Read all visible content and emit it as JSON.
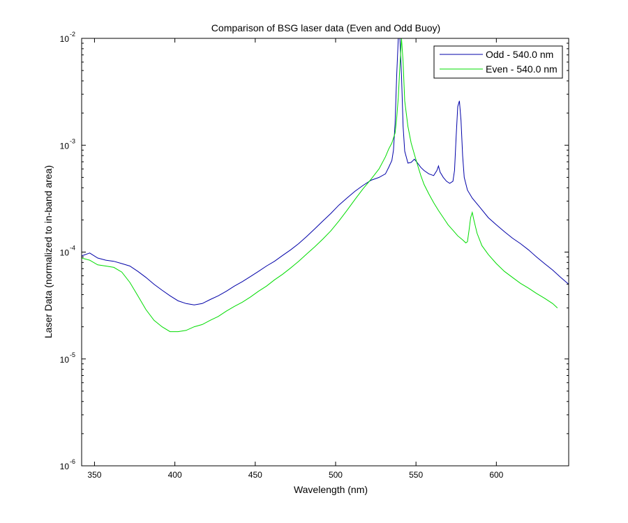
{
  "chart_data": {
    "type": "line",
    "title": "Comparison of BSG laser data (Even and Odd Buoy)",
    "xlabel": "Wavelength (nm)",
    "ylabel": "Laser Data (normalized to in-band area)",
    "xlim": [
      342,
      645
    ],
    "ylim": [
      1e-06,
      0.01
    ],
    "yscale": "log",
    "x_ticks": [
      350,
      400,
      450,
      500,
      550,
      600
    ],
    "y_ticks": [
      {
        "base": "10",
        "exp": "-6",
        "value": 1e-06
      },
      {
        "base": "10",
        "exp": "-5",
        "value": 1e-05
      },
      {
        "base": "10",
        "exp": "-4",
        "value": 0.0001
      },
      {
        "base": "10",
        "exp": "-3",
        "value": 0.001
      },
      {
        "base": "10",
        "exp": "-2",
        "value": 0.01
      }
    ],
    "grid": false,
    "legend_position": "top-right",
    "series": [
      {
        "name": "Odd - 540.0 nm",
        "color": "#0000a8",
        "points": [
          [
            342,
            9.2e-05
          ],
          [
            347,
            9.8e-05
          ],
          [
            352,
            8.8e-05
          ],
          [
            357,
            8.4e-05
          ],
          [
            362,
            8.2e-05
          ],
          [
            367,
            7.8e-05
          ],
          [
            372,
            7.4e-05
          ],
          [
            377,
            6.6e-05
          ],
          [
            382,
            5.8e-05
          ],
          [
            387,
            5e-05
          ],
          [
            392,
            4.4e-05
          ],
          [
            397,
            3.9e-05
          ],
          [
            402,
            3.5e-05
          ],
          [
            407,
            3.3e-05
          ],
          [
            412,
            3.2e-05
          ],
          [
            417,
            3.3e-05
          ],
          [
            422,
            3.6e-05
          ],
          [
            427,
            3.9e-05
          ],
          [
            432,
            4.3e-05
          ],
          [
            437,
            4.8e-05
          ],
          [
            442,
            5.3e-05
          ],
          [
            447,
            5.9e-05
          ],
          [
            452,
            6.6e-05
          ],
          [
            457,
            7.4e-05
          ],
          [
            462,
            8.2e-05
          ],
          [
            467,
            9.3e-05
          ],
          [
            472,
            0.000105
          ],
          [
            477,
            0.00012
          ],
          [
            482,
            0.00014
          ],
          [
            487,
            0.000165
          ],
          [
            492,
            0.000195
          ],
          [
            497,
            0.00023
          ],
          [
            502,
            0.000275
          ],
          [
            507,
            0.00032
          ],
          [
            512,
            0.00037
          ],
          [
            517,
            0.00042
          ],
          [
            522,
            0.00047
          ],
          [
            527,
            0.0005
          ],
          [
            531,
            0.00054
          ],
          [
            533,
            0.00062
          ],
          [
            535,
            0.00072
          ],
          [
            536,
            0.0009
          ],
          [
            537,
            0.0016
          ],
          [
            538,
            0.0045
          ],
          [
            539,
            0.01
          ],
          [
            540,
            0.01
          ],
          [
            541,
            0.0045
          ],
          [
            542,
            0.0015
          ],
          [
            543,
            0.00088
          ],
          [
            545,
            0.00068
          ],
          [
            547,
            0.00069
          ],
          [
            549,
            0.00074
          ],
          [
            551,
            0.00068
          ],
          [
            553,
            0.00062
          ],
          [
            555,
            0.00058
          ],
          [
            558,
            0.00054
          ],
          [
            561,
            0.00052
          ],
          [
            563,
            0.00058
          ],
          [
            564,
            0.00064
          ],
          [
            565,
            0.00056
          ],
          [
            567,
            0.0005
          ],
          [
            569,
            0.00046
          ],
          [
            571,
            0.00044
          ],
          [
            573,
            0.00046
          ],
          [
            574,
            0.00058
          ],
          [
            575,
            0.0012
          ],
          [
            576,
            0.0023
          ],
          [
            577,
            0.0026
          ],
          [
            578,
            0.0017
          ],
          [
            579,
            0.0008
          ],
          [
            580,
            0.0005
          ],
          [
            582,
            0.00038
          ],
          [
            585,
            0.00032
          ],
          [
            590,
            0.00026
          ],
          [
            595,
            0.00021
          ],
          [
            600,
            0.00018
          ],
          [
            605,
            0.000155
          ],
          [
            610,
            0.000135
          ],
          [
            615,
            0.00012
          ],
          [
            620,
            0.000105
          ],
          [
            625,
            9e-05
          ],
          [
            630,
            7.8e-05
          ],
          [
            635,
            6.8e-05
          ],
          [
            640,
            5.8e-05
          ],
          [
            645,
            5e-05
          ]
        ]
      },
      {
        "name": "Even - 540.0 nm",
        "color": "#00dc00",
        "points": [
          [
            342,
            8.8e-05
          ],
          [
            347,
            8.4e-05
          ],
          [
            352,
            7.6e-05
          ],
          [
            357,
            7.4e-05
          ],
          [
            362,
            7.2e-05
          ],
          [
            367,
            6.5e-05
          ],
          [
            372,
            5.2e-05
          ],
          [
            377,
            3.9e-05
          ],
          [
            382,
            2.9e-05
          ],
          [
            387,
            2.3e-05
          ],
          [
            392,
            2e-05
          ],
          [
            397,
            1.8e-05
          ],
          [
            402,
            1.8e-05
          ],
          [
            407,
            1.85e-05
          ],
          [
            412,
            2e-05
          ],
          [
            417,
            2.1e-05
          ],
          [
            422,
            2.3e-05
          ],
          [
            427,
            2.5e-05
          ],
          [
            432,
            2.8e-05
          ],
          [
            437,
            3.1e-05
          ],
          [
            442,
            3.4e-05
          ],
          [
            447,
            3.8e-05
          ],
          [
            452,
            4.3e-05
          ],
          [
            457,
            4.8e-05
          ],
          [
            462,
            5.5e-05
          ],
          [
            467,
            6.2e-05
          ],
          [
            472,
            7.1e-05
          ],
          [
            477,
            8.2e-05
          ],
          [
            482,
            9.6e-05
          ],
          [
            487,
            0.000112
          ],
          [
            492,
            0.000132
          ],
          [
            497,
            0.000158
          ],
          [
            502,
            0.000195
          ],
          [
            507,
            0.000245
          ],
          [
            512,
            0.00031
          ],
          [
            517,
            0.00039
          ],
          [
            522,
            0.00048
          ],
          [
            527,
            0.0006
          ],
          [
            531,
            0.00078
          ],
          [
            533,
            0.00092
          ],
          [
            535,
            0.00105
          ],
          [
            537,
            0.0013
          ],
          [
            538,
            0.0018
          ],
          [
            539,
            0.0028
          ],
          [
            540,
            0.0055
          ],
          [
            541,
            0.01
          ],
          [
            542,
            0.006
          ],
          [
            543,
            0.0026
          ],
          [
            545,
            0.0015
          ],
          [
            547,
            0.00105
          ],
          [
            549,
            0.00082
          ],
          [
            551,
            0.00065
          ],
          [
            553,
            0.00052
          ],
          [
            555,
            0.00043
          ],
          [
            558,
            0.00035
          ],
          [
            561,
            0.00029
          ],
          [
            564,
            0.000245
          ],
          [
            567,
            0.00021
          ],
          [
            570,
            0.00018
          ],
          [
            573,
            0.00016
          ],
          [
            576,
            0.000142
          ],
          [
            579,
            0.00013
          ],
          [
            581,
            0.000122
          ],
          [
            582,
            0.000125
          ],
          [
            583,
            0.00016
          ],
          [
            584,
            0.00021
          ],
          [
            585,
            0.000235
          ],
          [
            586,
            0.0002
          ],
          [
            588,
            0.00015
          ],
          [
            591,
            0.000115
          ],
          [
            595,
            9.5e-05
          ],
          [
            600,
            7.8e-05
          ],
          [
            605,
            6.6e-05
          ],
          [
            610,
            5.8e-05
          ],
          [
            615,
            5.1e-05
          ],
          [
            620,
            4.6e-05
          ],
          [
            625,
            4.1e-05
          ],
          [
            630,
            3.7e-05
          ],
          [
            635,
            3.3e-05
          ],
          [
            638,
            3e-05
          ]
        ]
      }
    ]
  }
}
